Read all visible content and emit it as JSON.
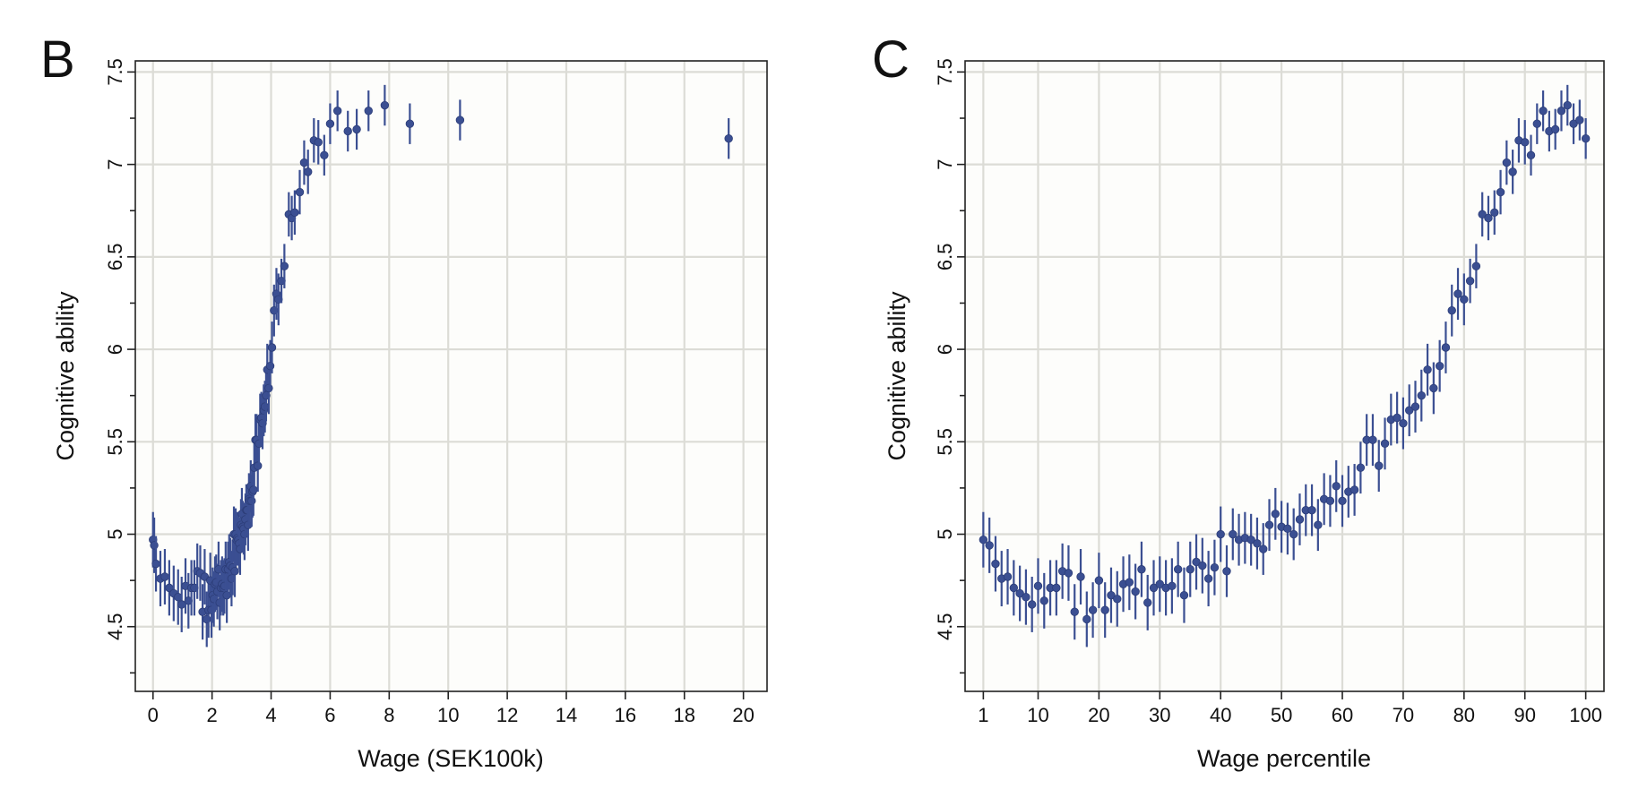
{
  "chart_data": [
    {
      "panel_label": "B",
      "type": "scatter",
      "error_bars": true,
      "xlabel": "Wage (SEK100k)",
      "ylabel": "Cognitive ability",
      "xlim": [
        -0.6,
        20.8
      ],
      "ylim": [
        4.15,
        7.56
      ],
      "xticks": [
        0,
        2,
        4,
        6,
        8,
        10,
        12,
        14,
        16,
        18,
        20
      ],
      "yticks": [
        4.5,
        5,
        5.5,
        6,
        6.5,
        7,
        7.5
      ],
      "yticklabels": [
        "4.5",
        "5",
        "5.5",
        "6",
        "6.5",
        "7",
        "7.5"
      ],
      "grid": true,
      "color": "#3b4f92",
      "x": [
        0,
        0.04,
        0.1,
        0.25,
        0.4,
        0.55,
        0.7,
        0.85,
        0.97,
        1.1,
        1.2,
        1.3,
        1.4,
        1.5,
        1.6,
        1.68,
        1.75,
        1.82,
        1.88,
        1.94,
        1.98,
        2.02,
        2.06,
        2.1,
        2.14,
        2.18,
        2.22,
        2.26,
        2.3,
        2.34,
        2.38,
        2.42,
        2.46,
        2.5,
        2.54,
        2.58,
        2.62,
        2.66,
        2.7,
        2.74,
        2.77,
        2.8,
        2.83,
        2.86,
        2.89,
        2.92,
        2.95,
        2.98,
        3.01,
        3.04,
        3.07,
        3.1,
        3.13,
        3.16,
        3.19,
        3.22,
        3.25,
        3.28,
        3.31,
        3.34,
        3.37,
        3.4,
        3.43,
        3.47,
        3.51,
        3.55,
        3.59,
        3.63,
        3.67,
        3.71,
        3.75,
        3.79,
        3.83,
        3.87,
        3.92,
        3.97,
        4.03,
        4.1,
        4.18,
        4.25,
        4.35,
        4.45,
        4.6,
        4.7,
        4.8,
        4.97,
        5.12,
        5.25,
        5.45,
        5.6,
        5.8,
        6.0,
        6.25,
        6.6,
        6.9,
        7.3,
        7.85,
        8.7,
        10.4,
        19.5
      ],
      "y": [
        4.97,
        4.94,
        4.84,
        4.76,
        4.77,
        4.71,
        4.68,
        4.66,
        4.62,
        4.72,
        4.64,
        4.71,
        4.71,
        4.8,
        4.79,
        4.58,
        4.77,
        4.54,
        4.59,
        4.75,
        4.59,
        4.67,
        4.65,
        4.73,
        4.74,
        4.69,
        4.81,
        4.63,
        4.71,
        4.73,
        4.71,
        4.72,
        4.81,
        4.67,
        4.81,
        4.85,
        4.83,
        4.76,
        4.82,
        5.0,
        4.8,
        5.0,
        4.97,
        4.98,
        4.97,
        4.95,
        4.92,
        5.05,
        5.11,
        5.04,
        5.03,
        5.0,
        5.08,
        5.13,
        5.13,
        5.05,
        5.19,
        5.18,
        5.26,
        5.18,
        5.23,
        5.24,
        5.36,
        5.51,
        5.51,
        5.37,
        5.49,
        5.62,
        5.63,
        5.6,
        5.67,
        5.69,
        5.75,
        5.89,
        5.79,
        5.91,
        6.01,
        6.21,
        6.3,
        6.27,
        6.37,
        6.45,
        6.73,
        6.71,
        6.74,
        6.85,
        7.01,
        6.96,
        7.13,
        7.12,
        7.05,
        7.22,
        7.29,
        7.18,
        7.19,
        7.29,
        7.32,
        7.22,
        7.24,
        7.14
      ],
      "err": [
        0.15,
        0.15,
        0.15,
        0.15,
        0.15,
        0.15,
        0.15,
        0.15,
        0.15,
        0.15,
        0.15,
        0.15,
        0.15,
        0.15,
        0.15,
        0.15,
        0.15,
        0.15,
        0.15,
        0.15,
        0.15,
        0.15,
        0.15,
        0.15,
        0.15,
        0.15,
        0.15,
        0.15,
        0.15,
        0.15,
        0.15,
        0.15,
        0.15,
        0.15,
        0.15,
        0.15,
        0.15,
        0.15,
        0.15,
        0.15,
        0.14,
        0.14,
        0.14,
        0.14,
        0.14,
        0.14,
        0.14,
        0.14,
        0.14,
        0.14,
        0.14,
        0.14,
        0.14,
        0.14,
        0.14,
        0.14,
        0.14,
        0.14,
        0.14,
        0.14,
        0.14,
        0.14,
        0.14,
        0.14,
        0.14,
        0.14,
        0.14,
        0.14,
        0.14,
        0.14,
        0.14,
        0.14,
        0.14,
        0.14,
        0.14,
        0.14,
        0.14,
        0.14,
        0.14,
        0.14,
        0.12,
        0.12,
        0.12,
        0.12,
        0.12,
        0.12,
        0.12,
        0.12,
        0.12,
        0.12,
        0.11,
        0.11,
        0.11,
        0.11,
        0.11,
        0.11,
        0.11,
        0.11,
        0.11,
        0.11
      ]
    },
    {
      "panel_label": "C",
      "type": "scatter",
      "error_bars": true,
      "xlabel": "Wage percentile",
      "ylabel": "Cognitive ability",
      "xlim": [
        -2,
        103
      ],
      "ylim": [
        4.15,
        7.56
      ],
      "xticks": [
        1,
        10,
        20,
        30,
        40,
        50,
        60,
        70,
        80,
        90,
        100
      ],
      "yticks": [
        4.5,
        5,
        5.5,
        6,
        6.5,
        7,
        7.5
      ],
      "yticklabels": [
        "4.5",
        "5",
        "5.5",
        "6",
        "6.5",
        "7",
        "7.5"
      ],
      "grid": true,
      "color": "#3b4f92",
      "x_from_index_start": 1,
      "y": [
        4.97,
        4.94,
        4.84,
        4.76,
        4.77,
        4.71,
        4.68,
        4.66,
        4.62,
        4.72,
        4.64,
        4.71,
        4.71,
        4.8,
        4.79,
        4.58,
        4.77,
        4.54,
        4.59,
        4.75,
        4.59,
        4.67,
        4.65,
        4.73,
        4.74,
        4.69,
        4.81,
        4.63,
        4.71,
        4.73,
        4.71,
        4.72,
        4.81,
        4.67,
        4.81,
        4.85,
        4.83,
        4.76,
        4.82,
        5.0,
        4.8,
        5.0,
        4.97,
        4.98,
        4.97,
        4.95,
        4.92,
        5.05,
        5.11,
        5.04,
        5.03,
        5.0,
        5.08,
        5.13,
        5.13,
        5.05,
        5.19,
        5.18,
        5.26,
        5.18,
        5.23,
        5.24,
        5.36,
        5.51,
        5.51,
        5.37,
        5.49,
        5.62,
        5.63,
        5.6,
        5.67,
        5.69,
        5.75,
        5.89,
        5.79,
        5.91,
        6.01,
        6.21,
        6.3,
        6.27,
        6.37,
        6.45,
        6.73,
        6.71,
        6.74,
        6.85,
        7.01,
        6.96,
        7.13,
        7.12,
        7.05,
        7.22,
        7.29,
        7.18,
        7.19,
        7.29,
        7.32,
        7.22,
        7.24,
        7.14
      ],
      "err": [
        0.15,
        0.15,
        0.15,
        0.15,
        0.15,
        0.15,
        0.15,
        0.15,
        0.15,
        0.15,
        0.15,
        0.15,
        0.15,
        0.15,
        0.15,
        0.15,
        0.15,
        0.15,
        0.15,
        0.15,
        0.15,
        0.15,
        0.15,
        0.15,
        0.15,
        0.15,
        0.15,
        0.15,
        0.15,
        0.15,
        0.15,
        0.15,
        0.15,
        0.15,
        0.15,
        0.15,
        0.15,
        0.15,
        0.15,
        0.15,
        0.14,
        0.14,
        0.14,
        0.14,
        0.14,
        0.14,
        0.14,
        0.14,
        0.14,
        0.14,
        0.14,
        0.14,
        0.14,
        0.14,
        0.14,
        0.14,
        0.14,
        0.14,
        0.14,
        0.14,
        0.14,
        0.14,
        0.14,
        0.14,
        0.14,
        0.14,
        0.14,
        0.14,
        0.14,
        0.14,
        0.14,
        0.14,
        0.14,
        0.14,
        0.14,
        0.14,
        0.14,
        0.14,
        0.14,
        0.14,
        0.12,
        0.12,
        0.12,
        0.12,
        0.12,
        0.12,
        0.12,
        0.12,
        0.12,
        0.12,
        0.11,
        0.11,
        0.11,
        0.11,
        0.11,
        0.11,
        0.11,
        0.11,
        0.11,
        0.11
      ]
    }
  ]
}
